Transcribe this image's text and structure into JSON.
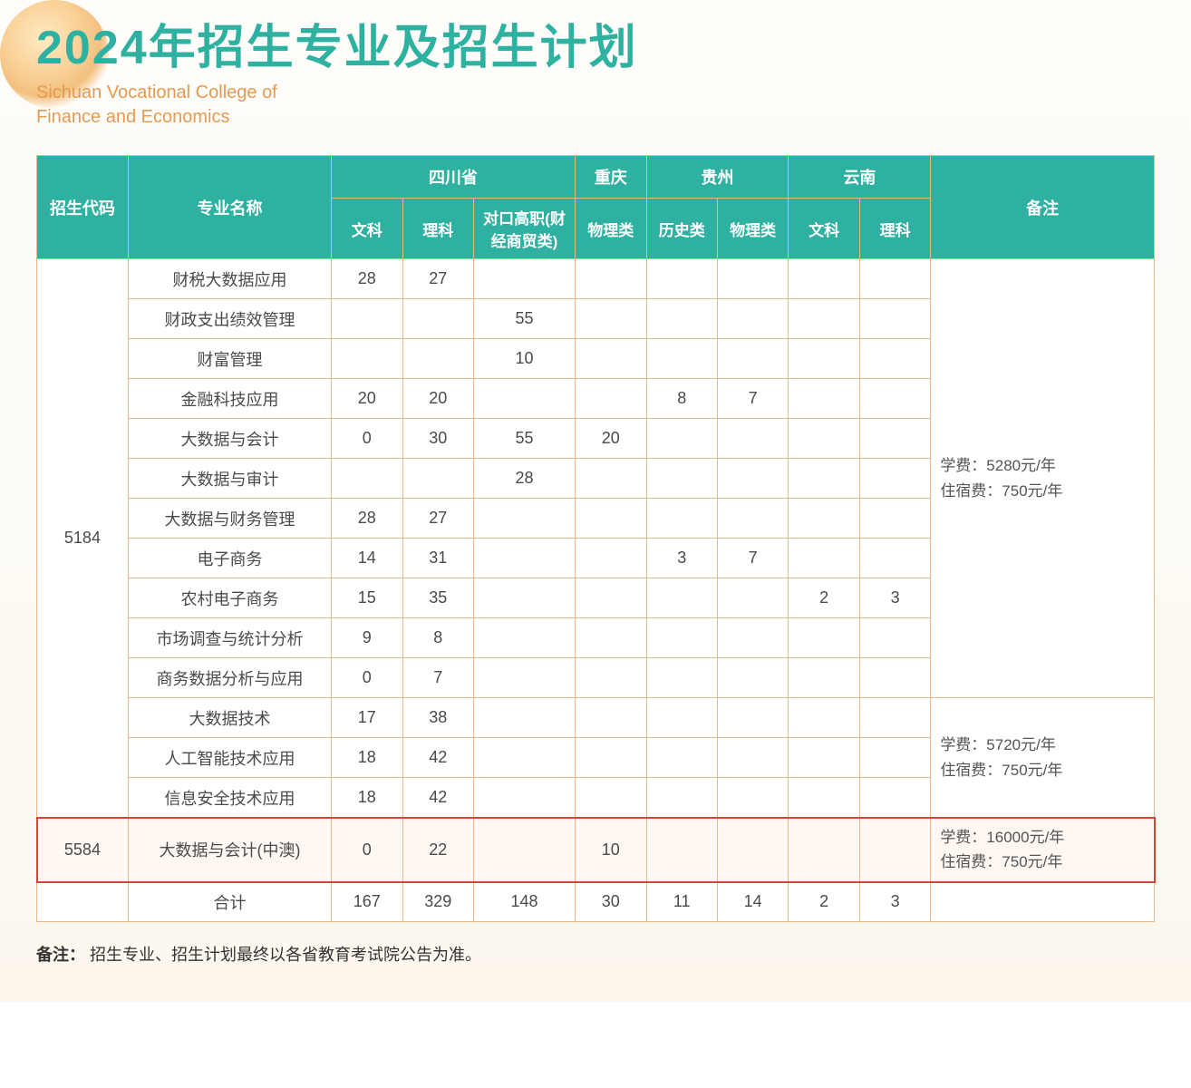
{
  "colors": {
    "title": "#2fb1a2",
    "subtitle": "#e59a52",
    "header_bg": "#2fb1a2",
    "header_fg": "#ffffff",
    "border": "#e9b889",
    "highlight_outline": "#d8443a",
    "row_bg": "#ffffff"
  },
  "header": {
    "title": "2024年招生专业及招生计划",
    "subtitle_line1": "Sichuan Vocational College of",
    "subtitle_line2": "Finance and Economics"
  },
  "table": {
    "head": {
      "code": "招生代码",
      "major": "专业名称",
      "sichuan": "四川省",
      "chongqing": "重庆",
      "guizhou": "贵州",
      "yunnan": "云南",
      "remark": "备注",
      "sub": {
        "sc_wen": "文科",
        "sc_li": "理科",
        "sc_dk": "对口高职(财经商贸类)",
        "cq_phy": "物理类",
        "gz_his": "历史类",
        "gz_phy": "物理类",
        "yn_wen": "文科",
        "yn_li": "理科"
      }
    },
    "codes": {
      "g1": "5184",
      "g2": "5584"
    },
    "remarks": {
      "r1_l1": "学费：5280元/年",
      "r1_l2": "住宿费：750元/年",
      "r2_l1": "学费：5720元/年",
      "r2_l2": "住宿费：750元/年",
      "r3_l1": "学费：16000元/年",
      "r3_l2": "住宿费：750元/年"
    },
    "rows": [
      {
        "major": "财税大数据应用",
        "sc_wen": "28",
        "sc_li": "27",
        "sc_dk": "",
        "cq_phy": "",
        "gz_his": "",
        "gz_phy": "",
        "yn_wen": "",
        "yn_li": ""
      },
      {
        "major": "财政支出绩效管理",
        "sc_wen": "",
        "sc_li": "",
        "sc_dk": "55",
        "cq_phy": "",
        "gz_his": "",
        "gz_phy": "",
        "yn_wen": "",
        "yn_li": ""
      },
      {
        "major": "财富管理",
        "sc_wen": "",
        "sc_li": "",
        "sc_dk": "10",
        "cq_phy": "",
        "gz_his": "",
        "gz_phy": "",
        "yn_wen": "",
        "yn_li": ""
      },
      {
        "major": "金融科技应用",
        "sc_wen": "20",
        "sc_li": "20",
        "sc_dk": "",
        "cq_phy": "",
        "gz_his": "8",
        "gz_phy": "7",
        "yn_wen": "",
        "yn_li": ""
      },
      {
        "major": "大数据与会计",
        "sc_wen": "0",
        "sc_li": "30",
        "sc_dk": "55",
        "cq_phy": "20",
        "gz_his": "",
        "gz_phy": "",
        "yn_wen": "",
        "yn_li": ""
      },
      {
        "major": "大数据与审计",
        "sc_wen": "",
        "sc_li": "",
        "sc_dk": "28",
        "cq_phy": "",
        "gz_his": "",
        "gz_phy": "",
        "yn_wen": "",
        "yn_li": ""
      },
      {
        "major": "大数据与财务管理",
        "sc_wen": "28",
        "sc_li": "27",
        "sc_dk": "",
        "cq_phy": "",
        "gz_his": "",
        "gz_phy": "",
        "yn_wen": "",
        "yn_li": ""
      },
      {
        "major": "电子商务",
        "sc_wen": "14",
        "sc_li": "31",
        "sc_dk": "",
        "cq_phy": "",
        "gz_his": "3",
        "gz_phy": "7",
        "yn_wen": "",
        "yn_li": ""
      },
      {
        "major": "农村电子商务",
        "sc_wen": "15",
        "sc_li": "35",
        "sc_dk": "",
        "cq_phy": "",
        "gz_his": "",
        "gz_phy": "",
        "yn_wen": "2",
        "yn_li": "3"
      },
      {
        "major": "市场调查与统计分析",
        "sc_wen": "9",
        "sc_li": "8",
        "sc_dk": "",
        "cq_phy": "",
        "gz_his": "",
        "gz_phy": "",
        "yn_wen": "",
        "yn_li": ""
      },
      {
        "major": "商务数据分析与应用",
        "sc_wen": "0",
        "sc_li": "7",
        "sc_dk": "",
        "cq_phy": "",
        "gz_his": "",
        "gz_phy": "",
        "yn_wen": "",
        "yn_li": ""
      },
      {
        "major": "大数据技术",
        "sc_wen": "17",
        "sc_li": "38",
        "sc_dk": "",
        "cq_phy": "",
        "gz_his": "",
        "gz_phy": "",
        "yn_wen": "",
        "yn_li": ""
      },
      {
        "major": "人工智能技术应用",
        "sc_wen": "18",
        "sc_li": "42",
        "sc_dk": "",
        "cq_phy": "",
        "gz_his": "",
        "gz_phy": "",
        "yn_wen": "",
        "yn_li": ""
      },
      {
        "major": "信息安全技术应用",
        "sc_wen": "18",
        "sc_li": "42",
        "sc_dk": "",
        "cq_phy": "",
        "gz_his": "",
        "gz_phy": "",
        "yn_wen": "",
        "yn_li": ""
      }
    ],
    "row_hl": {
      "major": "大数据与会计(中澳)",
      "sc_wen": "0",
      "sc_li": "22",
      "sc_dk": "",
      "cq_phy": "10",
      "gz_his": "",
      "gz_phy": "",
      "yn_wen": "",
      "yn_li": ""
    },
    "total": {
      "major": "合计",
      "sc_wen": "167",
      "sc_li": "329",
      "sc_dk": "148",
      "cq_phy": "30",
      "gz_his": "11",
      "gz_phy": "14",
      "yn_wen": "2",
      "yn_li": "3"
    }
  },
  "footnote": {
    "label": "备注：",
    "text": "招生专业、招生计划最终以各省教育考试院公告为准。"
  }
}
